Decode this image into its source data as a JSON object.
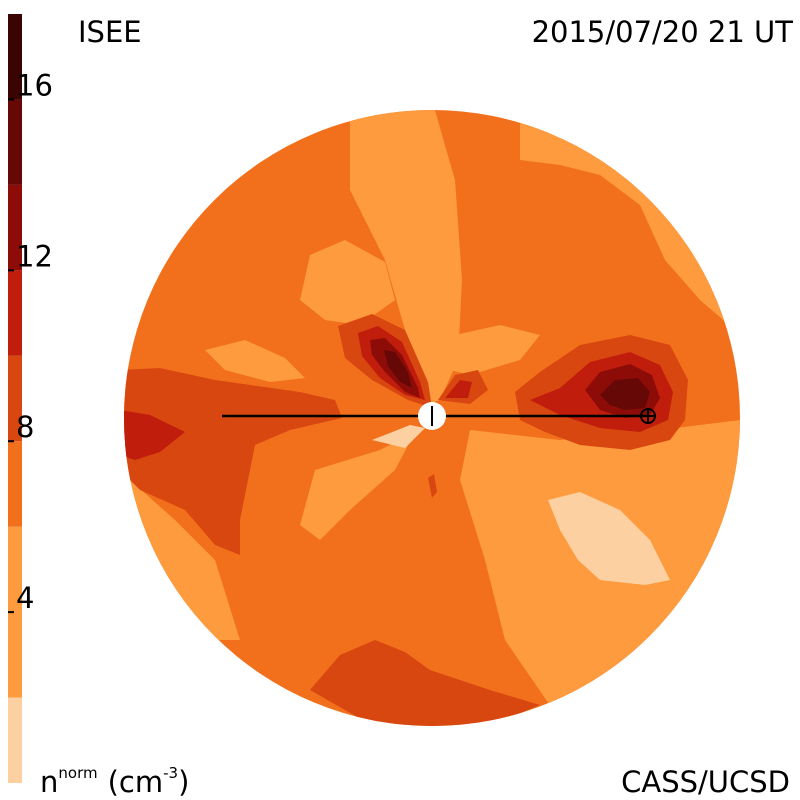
{
  "header": {
    "source_label": "ISEE",
    "timestamp": "2015/07/20 21 UT"
  },
  "footer": {
    "unit_label_base": "n",
    "unit_label_super": "norm",
    "unit_label_unit": "(cm",
    "unit_label_exp": "-3",
    "unit_label_close": ")",
    "credit": "CASS/UCSD"
  },
  "colorbar": {
    "min": 0,
    "max": 18,
    "ticks": [
      {
        "value": 4,
        "label": "4"
      },
      {
        "value": 8,
        "label": "8"
      },
      {
        "value": 12,
        "label": "12"
      },
      {
        "value": 16,
        "label": "16"
      }
    ],
    "bands": [
      {
        "from": 0,
        "to": 2,
        "color": "#fdd0a2"
      },
      {
        "from": 2,
        "to": 6,
        "color": "#fd9b3e"
      },
      {
        "from": 6,
        "to": 8,
        "color": "#f2701c"
      },
      {
        "from": 8,
        "to": 10,
        "color": "#d94710"
      },
      {
        "from": 10,
        "to": 12,
        "color": "#c11d0c"
      },
      {
        "from": 12,
        "to": 14,
        "color": "#8e0c08"
      },
      {
        "from": 14,
        "to": 16,
        "color": "#660806"
      },
      {
        "from": 16,
        "to": 18,
        "color": "#3a0402"
      }
    ]
  },
  "map": {
    "background_color": "#f2701c",
    "sun_icon": "sun-marker-icon",
    "earth_icon": "earth-marker-icon"
  }
}
